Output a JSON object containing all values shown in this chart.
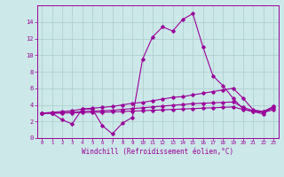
{
  "xlabel": "Windchill (Refroidissement éolien,°C)",
  "background_color": "#cce8e8",
  "grid_color": "#aacccc",
  "line_color": "#990099",
  "x_hours": [
    0,
    1,
    2,
    3,
    4,
    5,
    6,
    7,
    8,
    9,
    10,
    11,
    12,
    13,
    14,
    15,
    16,
    17,
    18,
    19,
    20,
    21,
    22,
    23
  ],
  "line1": [
    3.0,
    3.0,
    2.2,
    1.7,
    3.5,
    3.5,
    1.5,
    0.5,
    1.8,
    2.5,
    9.5,
    12.2,
    13.4,
    12.9,
    14.3,
    15.0,
    11.0,
    7.5,
    6.3,
    4.8,
    3.5,
    3.2,
    2.9,
    3.8
  ],
  "line2": [
    3.0,
    3.1,
    3.2,
    3.3,
    3.5,
    3.6,
    3.7,
    3.8,
    4.0,
    4.2,
    4.3,
    4.5,
    4.7,
    4.9,
    5.0,
    5.2,
    5.4,
    5.6,
    5.8,
    6.0,
    4.8,
    3.4,
    3.2,
    3.8
  ],
  "line3": [
    3.0,
    3.0,
    3.05,
    3.1,
    3.2,
    3.25,
    3.3,
    3.35,
    3.45,
    3.55,
    3.65,
    3.75,
    3.85,
    3.95,
    4.05,
    4.15,
    4.2,
    4.25,
    4.3,
    4.35,
    3.7,
    3.3,
    3.15,
    3.6
  ],
  "line4": [
    3.0,
    3.0,
    3.02,
    3.04,
    3.08,
    3.1,
    3.12,
    3.15,
    3.2,
    3.25,
    3.3,
    3.35,
    3.4,
    3.45,
    3.5,
    3.55,
    3.6,
    3.65,
    3.7,
    3.75,
    3.45,
    3.2,
    3.1,
    3.4
  ],
  "ylim": [
    0,
    16
  ],
  "xlim_min": -0.5,
  "xlim_max": 23.5,
  "yticks": [
    0,
    2,
    4,
    6,
    8,
    10,
    12,
    14
  ],
  "xticks": [
    0,
    1,
    2,
    3,
    4,
    5,
    6,
    7,
    8,
    9,
    10,
    11,
    12,
    13,
    14,
    15,
    16,
    17,
    18,
    19,
    20,
    21,
    22,
    23
  ]
}
